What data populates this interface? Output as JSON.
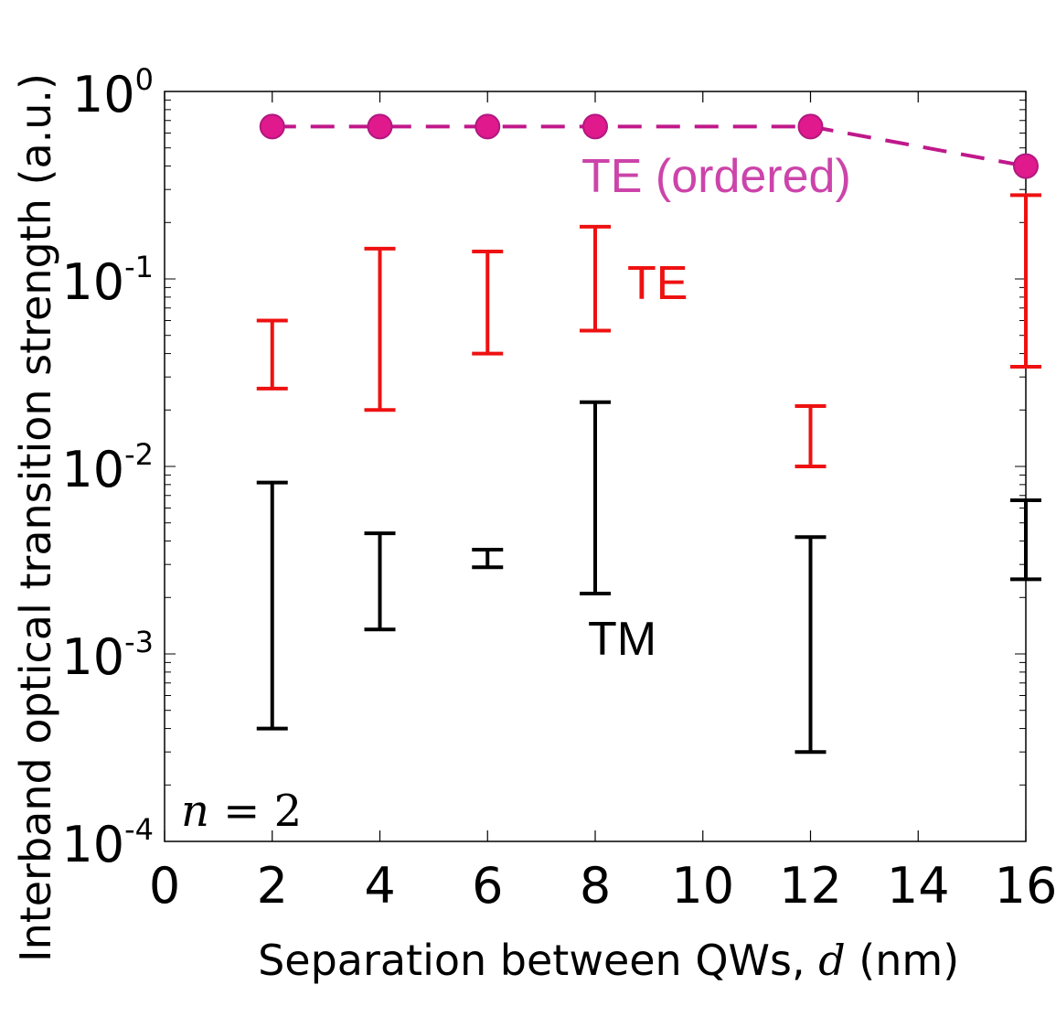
{
  "chart_data": {
    "type": "errorbar",
    "xlabel_pre": "Separation between QWs, ",
    "xlabel_var": "d",
    "xlabel_post": " (nm)",
    "ylabel": "Interband optical transition strength (a.u.)",
    "xlim": [
      0,
      16
    ],
    "ylim": [
      0.0001,
      1
    ],
    "yscale": "log",
    "xticks": [
      0,
      2,
      4,
      6,
      8,
      10,
      12,
      14,
      16
    ],
    "yticks": [
      {
        "base": "10",
        "exp": "0",
        "value": 1
      },
      {
        "base": "10",
        "exp": "-1",
        "value": 0.1
      },
      {
        "base": "10",
        "exp": "-2",
        "value": 0.01
      },
      {
        "base": "10",
        "exp": "-3",
        "value": 0.001
      },
      {
        "base": "10",
        "exp": "-4",
        "value": 0.0001
      }
    ],
    "annotation": {
      "var": "n",
      "eq": " = 2"
    },
    "series": [
      {
        "name": "TE (ordered)",
        "kind": "line-markers",
        "color": "#e0198c",
        "label_color": "#cc44aa",
        "x": [
          2,
          4,
          6,
          8,
          12,
          16
        ],
        "y": [
          0.65,
          0.65,
          0.65,
          0.65,
          0.65,
          0.4
        ]
      },
      {
        "name": "TE",
        "kind": "range",
        "color": "#ee1111",
        "x": [
          2,
          4,
          6,
          8,
          12,
          16
        ],
        "low": [
          0.026,
          0.02,
          0.04,
          0.053,
          0.01,
          0.034
        ],
        "high": [
          0.06,
          0.145,
          0.14,
          0.19,
          0.021,
          0.28
        ]
      },
      {
        "name": "TM",
        "kind": "range",
        "color": "#000000",
        "x": [
          2,
          4,
          6,
          8,
          12,
          16
        ],
        "low": [
          0.0004,
          0.00135,
          0.0029,
          0.0021,
          0.0003,
          0.0025
        ],
        "high": [
          0.0082,
          0.0044,
          0.0036,
          0.022,
          0.0042,
          0.0066
        ]
      }
    ]
  }
}
